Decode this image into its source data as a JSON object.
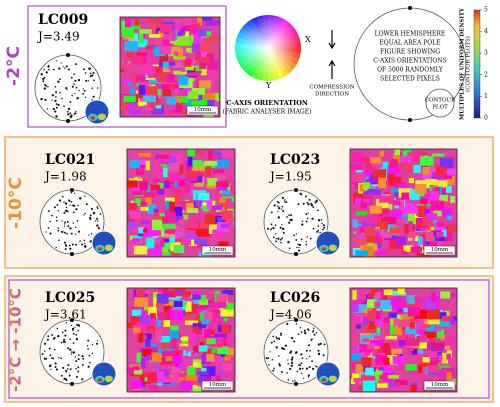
{
  "legend": {
    "wheel_title": "C-AXIS ORIENTATION",
    "wheel_subtitle": "(FABRIC ANALYSER IMAGE)",
    "axis_x": "X",
    "axis_y": "Y",
    "compression_lines": [
      "COMPRESSION",
      "DIRECTION"
    ],
    "pole_lines": [
      "LOWER HEMISPHERE",
      "EQUAL AREA POLE",
      "FIGURE SHOWING",
      "C-AXIS ORIENTATIONS",
      "OF 5000 RANDOMLY",
      "SELECTED PIXELS"
    ],
    "contour_lines": [
      "CONTOUR",
      "PLOT"
    ],
    "colorbar_ticks": [
      0,
      1,
      2,
      3,
      4,
      5
    ],
    "colorbar_label_lines": [
      "MULTIPLES OF UNIFORM DENSITY",
      "(CONTOUR PLOTS)"
    ]
  },
  "panels": [
    {
      "temperature": "-2°C",
      "samples": [
        {
          "id": "LC009",
          "j": "J=3.49",
          "scale": "10mm"
        }
      ]
    },
    {
      "temperature": "-10°C",
      "samples": [
        {
          "id": "LC021",
          "j": "J=1.98",
          "scale": "10mm"
        },
        {
          "id": "LC023",
          "j": "J=1.95",
          "scale": "10mm"
        }
      ]
    },
    {
      "temperature": "-2°C → -10°C",
      "samples": [
        {
          "id": "LC025",
          "j": "J=3.61",
          "scale": "10mm"
        },
        {
          "id": "LC026",
          "j": "J=4.06",
          "scale": "10mm"
        }
      ]
    }
  ]
}
